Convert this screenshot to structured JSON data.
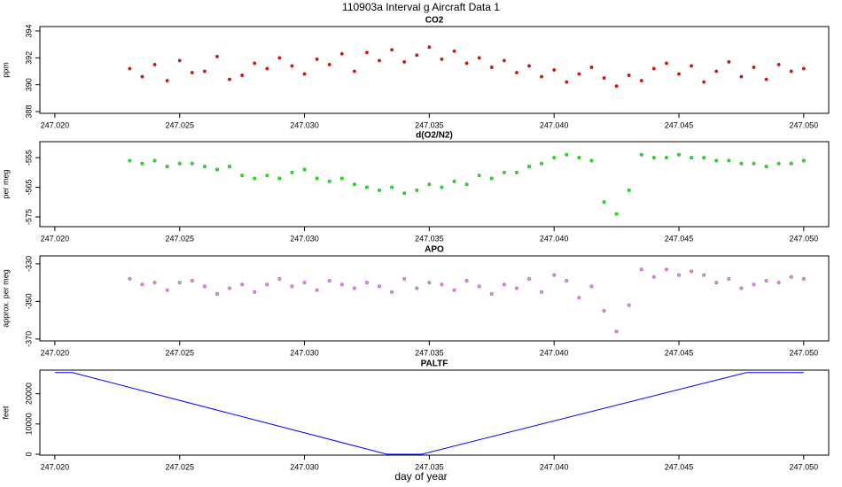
{
  "title": "110903a   Interval g Aircraft Data 1",
  "xlabel": "day of year",
  "chart_data": [
    {
      "type": "scatter",
      "title": "CO2",
      "ylabel": "ppm",
      "color": "#ff0000",
      "x": [
        247.023,
        247.0235,
        247.024,
        247.0245,
        247.025,
        247.0255,
        247.026,
        247.0265,
        247.027,
        247.0275,
        247.028,
        247.0285,
        247.029,
        247.0295,
        247.03,
        247.0305,
        247.031,
        247.0315,
        247.032,
        247.0325,
        247.033,
        247.0335,
        247.034,
        247.0345,
        247.035,
        247.0355,
        247.036,
        247.0365,
        247.037,
        247.0375,
        247.038,
        247.0385,
        247.039,
        247.0395,
        247.04,
        247.0405,
        247.041,
        247.0415,
        247.042,
        247.0425,
        247.043,
        247.0435,
        247.044,
        247.0445,
        247.045,
        247.0455,
        247.046,
        247.0465,
        247.047,
        247.0475,
        247.048,
        247.0485,
        247.049,
        247.0495,
        247.05
      ],
      "values": [
        391.2,
        390.6,
        391.5,
        390.3,
        391.8,
        390.9,
        391.0,
        392.1,
        390.4,
        390.7,
        391.6,
        391.2,
        392.0,
        391.4,
        390.8,
        391.9,
        391.5,
        392.3,
        391.0,
        392.4,
        391.8,
        392.6,
        391.7,
        392.2,
        392.8,
        391.9,
        392.5,
        391.6,
        392.0,
        391.3,
        391.8,
        390.9,
        391.4,
        390.6,
        391.1,
        390.2,
        390.8,
        391.3,
        390.5,
        389.9,
        390.7,
        390.3,
        391.2,
        391.6,
        390.8,
        391.4,
        390.2,
        391.0,
        391.7,
        390.6,
        391.3,
        390.4,
        391.5,
        391.0,
        391.2
      ],
      "xlim": [
        247.0194,
        247.051
      ],
      "ylim": [
        387.87,
        394.33
      ],
      "xticks": [
        {
          "value": 247.02,
          "label": "247.020"
        },
        247.025,
        {
          "value": 247.03,
          "label": "247.030"
        },
        247.035,
        {
          "value": 247.04,
          "label": "247.040"
        },
        247.045,
        {
          "value": 247.05,
          "label": "247.050"
        }
      ],
      "yticks": [
        388,
        390,
        392,
        394
      ]
    },
    {
      "type": "scatter",
      "title": "d(O2/N2)",
      "ylabel": "per meg",
      "color": "#00ff00",
      "x": [
        247.023,
        247.0235,
        247.024,
        247.0245,
        247.025,
        247.0255,
        247.026,
        247.0265,
        247.027,
        247.0275,
        247.028,
        247.0285,
        247.029,
        247.0295,
        247.03,
        247.0305,
        247.031,
        247.0315,
        247.032,
        247.0325,
        247.033,
        247.0335,
        247.034,
        247.0345,
        247.035,
        247.0355,
        247.036,
        247.0365,
        247.037,
        247.0375,
        247.038,
        247.0385,
        247.039,
        247.0395,
        247.04,
        247.0405,
        247.041,
        247.0415,
        247.042,
        247.0425,
        247.043,
        247.0435,
        247.044,
        247.0445,
        247.045,
        247.0455,
        247.046,
        247.0465,
        247.047,
        247.0475,
        247.048,
        247.0485,
        247.049,
        247.0495,
        247.05
      ],
      "values": [
        -556,
        -557,
        -556,
        -558,
        -557,
        -557,
        -558,
        -559,
        -558,
        -561,
        -562,
        -561,
        -562,
        -560,
        -559,
        -562,
        -563,
        -562,
        -564,
        -565,
        -566,
        -565,
        -567,
        -566,
        -564,
        -565,
        -563,
        -564,
        -561,
        -562,
        -560,
        -560,
        -558,
        -557,
        -555,
        -554,
        -555,
        -556,
        -570,
        -574,
        -566,
        -554,
        -555,
        -555,
        -554,
        -555,
        -555,
        -556,
        -556,
        -557,
        -557,
        -558,
        -557,
        -557,
        -556
      ],
      "xlim": [
        247.0194,
        247.051
      ],
      "ylim": [
        -578.3,
        -549.6
      ],
      "xticks": [
        {
          "value": 247.02,
          "label": "247.020"
        },
        247.025,
        {
          "value": 247.03,
          "label": "247.030"
        },
        247.035,
        {
          "value": 247.04,
          "label": "247.040"
        },
        247.045,
        {
          "value": 247.05,
          "label": "247.050"
        }
      ],
      "yticks": [
        -575,
        -565,
        -555
      ]
    },
    {
      "type": "scatter",
      "title": "APO",
      "ylabel": "approx. per meg",
      "color": "#ee82ee",
      "x": [
        247.023,
        247.0235,
        247.024,
        247.0245,
        247.025,
        247.0255,
        247.026,
        247.0265,
        247.027,
        247.0275,
        247.028,
        247.0285,
        247.029,
        247.0295,
        247.03,
        247.0305,
        247.031,
        247.0315,
        247.032,
        247.0325,
        247.033,
        247.0335,
        247.034,
        247.0345,
        247.035,
        247.0355,
        247.036,
        247.0365,
        247.037,
        247.0375,
        247.038,
        247.0385,
        247.039,
        247.0395,
        247.04,
        247.0405,
        247.041,
        247.0415,
        247.042,
        247.0425,
        247.043,
        247.0435,
        247.044,
        247.0445,
        247.045,
        247.0455,
        247.046,
        247.0465,
        247.047,
        247.0475,
        247.048,
        247.0485,
        247.049,
        247.0495,
        247.05
      ],
      "values": [
        -338,
        -341,
        -340,
        -344,
        -340,
        -339,
        -342,
        -346,
        -343,
        -341,
        -345,
        -341,
        -338,
        -342,
        -340,
        -344,
        -339,
        -341,
        -343,
        -340,
        -342,
        -345,
        -338,
        -343,
        -340,
        -341,
        -344,
        -339,
        -342,
        -346,
        -341,
        -343,
        -338,
        -345,
        -336,
        -339,
        -348,
        -342,
        -355,
        -366,
        -352,
        -333,
        -337,
        -333,
        -336,
        -334,
        -336,
        -340,
        -338,
        -343,
        -341,
        -339,
        -340,
        -337,
        -338
      ],
      "xlim": [
        247.0194,
        247.051
      ],
      "ylim": [
        -371,
        -325.8
      ],
      "xticks": [
        {
          "value": 247.02,
          "label": "247.020"
        },
        247.025,
        {
          "value": 247.03,
          "label": "247.030"
        },
        247.035,
        {
          "value": 247.04,
          "label": "247.040"
        },
        247.045,
        {
          "value": 247.05,
          "label": "247.050"
        }
      ],
      "yticks": [
        -370,
        -350,
        -330
      ]
    },
    {
      "type": "line",
      "title": "PALTF",
      "ylabel": "feet",
      "color": "#0000ff",
      "x": [
        247.02,
        247.0207,
        247.0333,
        247.0347,
        247.0477,
        247.05
      ],
      "values": [
        27000,
        27000,
        0,
        0,
        27000,
        27000
      ],
      "xlim": [
        247.0194,
        247.051
      ],
      "ylim": [
        -300,
        27800
      ],
      "xticks": [
        {
          "value": 247.02,
          "label": "247.020"
        },
        247.025,
        {
          "value": 247.03,
          "label": "247.030"
        },
        247.035,
        {
          "value": 247.04,
          "label": "247.040"
        },
        247.045,
        {
          "value": 247.05,
          "label": "247.050"
        }
      ],
      "yticks": [
        0,
        10000,
        20000
      ]
    }
  ]
}
